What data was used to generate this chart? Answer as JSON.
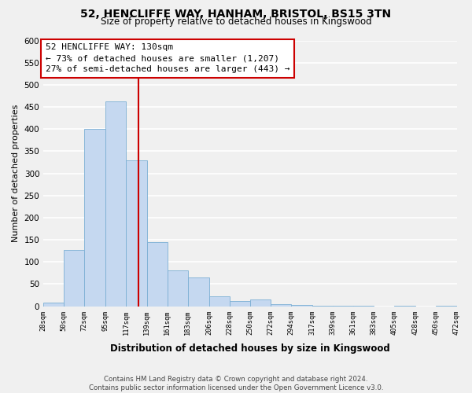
{
  "title": "52, HENCLIFFE WAY, HANHAM, BRISTOL, BS15 3TN",
  "subtitle": "Size of property relative to detached houses in Kingswood",
  "xlabel": "Distribution of detached houses by size in Kingswood",
  "ylabel": "Number of detached properties",
  "bin_edges": [
    28,
    50,
    72,
    95,
    117,
    139,
    161,
    183,
    206,
    228,
    250,
    272,
    294,
    317,
    339,
    361,
    383,
    405,
    428,
    450,
    472
  ],
  "bin_labels": [
    "28sqm",
    "50sqm",
    "72sqm",
    "95sqm",
    "117sqm",
    "139sqm",
    "161sqm",
    "183sqm",
    "206sqm",
    "228sqm",
    "250sqm",
    "272sqm",
    "294sqm",
    "317sqm",
    "339sqm",
    "361sqm",
    "383sqm",
    "405sqm",
    "428sqm",
    "450sqm",
    "472sqm"
  ],
  "counts": [
    8,
    127,
    400,
    462,
    330,
    145,
    80,
    64,
    22,
    12,
    16,
    5,
    2,
    1,
    1,
    1,
    0,
    1,
    0,
    1
  ],
  "bar_color": "#c5d8f0",
  "bar_edge_color": "#7bafd4",
  "property_line_x": 130,
  "property_line_color": "#cc0000",
  "annotation_title": "52 HENCLIFFE WAY: 130sqm",
  "annotation_line1": "← 73% of detached houses are smaller (1,207)",
  "annotation_line2": "27% of semi-detached houses are larger (443) →",
  "annotation_box_facecolor": "#ffffff",
  "annotation_box_edgecolor": "#cc0000",
  "ylim": [
    0,
    600
  ],
  "yticks": [
    0,
    50,
    100,
    150,
    200,
    250,
    300,
    350,
    400,
    450,
    500,
    550,
    600
  ],
  "footer_line1": "Contains HM Land Registry data © Crown copyright and database right 2024.",
  "footer_line2": "Contains public sector information licensed under the Open Government Licence v3.0.",
  "bg_color": "#f0f0f0",
  "plot_bg_color": "#f0f0f0",
  "grid_color": "#ffffff"
}
